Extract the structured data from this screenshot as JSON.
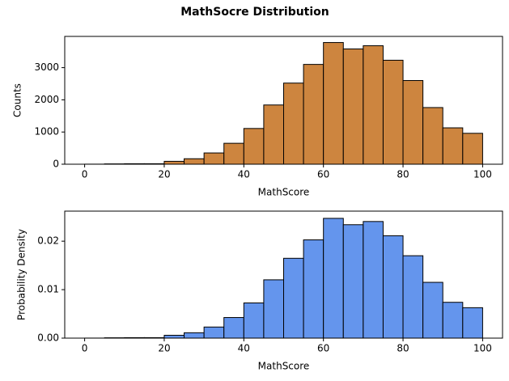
{
  "title": "MathSocre Distribution",
  "chart_data": [
    {
      "type": "histogram",
      "xlabel": "MathScore",
      "ylabel": "Counts",
      "color": "#cd853f",
      "bins": [
        0,
        5,
        10,
        15,
        20,
        25,
        30,
        35,
        40,
        45,
        50,
        55,
        60,
        65,
        70,
        75,
        80,
        85,
        90,
        95,
        100
      ],
      "values": [
        2,
        10,
        15,
        15,
        90,
        170,
        350,
        650,
        1110,
        1840,
        2520,
        3100,
        3780,
        3580,
        3680,
        3230,
        2600,
        1760,
        1130,
        960
      ],
      "xlim": [
        -5,
        105
      ],
      "xticks": [
        0,
        20,
        40,
        60,
        80,
        100
      ],
      "ylim": [
        0,
        3970
      ],
      "yticks": [
        0,
        1000,
        2000,
        3000
      ]
    },
    {
      "type": "histogram",
      "xlabel": "MathScore",
      "ylabel": "Probability Density",
      "color": "#6495ed",
      "bins": [
        0,
        5,
        10,
        15,
        20,
        25,
        30,
        35,
        40,
        45,
        50,
        55,
        60,
        65,
        70,
        75,
        80,
        85,
        90,
        95,
        100
      ],
      "values": [
        1e-05,
        7e-05,
        0.0001,
        0.0001,
        0.00059,
        0.00111,
        0.00229,
        0.00425,
        0.00726,
        0.01203,
        0.01647,
        0.02027,
        0.02471,
        0.0234,
        0.02406,
        0.02112,
        0.017,
        0.01151,
        0.00739,
        0.00628
      ],
      "xlim": [
        -5,
        105
      ],
      "xticks": [
        0,
        20,
        40,
        60,
        80,
        100
      ],
      "ylim": [
        0,
        0.0262
      ],
      "yticks": [
        {
          "value": 0,
          "label": "0.00"
        },
        {
          "value": 0.01,
          "label": "0.01"
        },
        {
          "value": 0.02,
          "label": "0.02"
        }
      ]
    }
  ]
}
